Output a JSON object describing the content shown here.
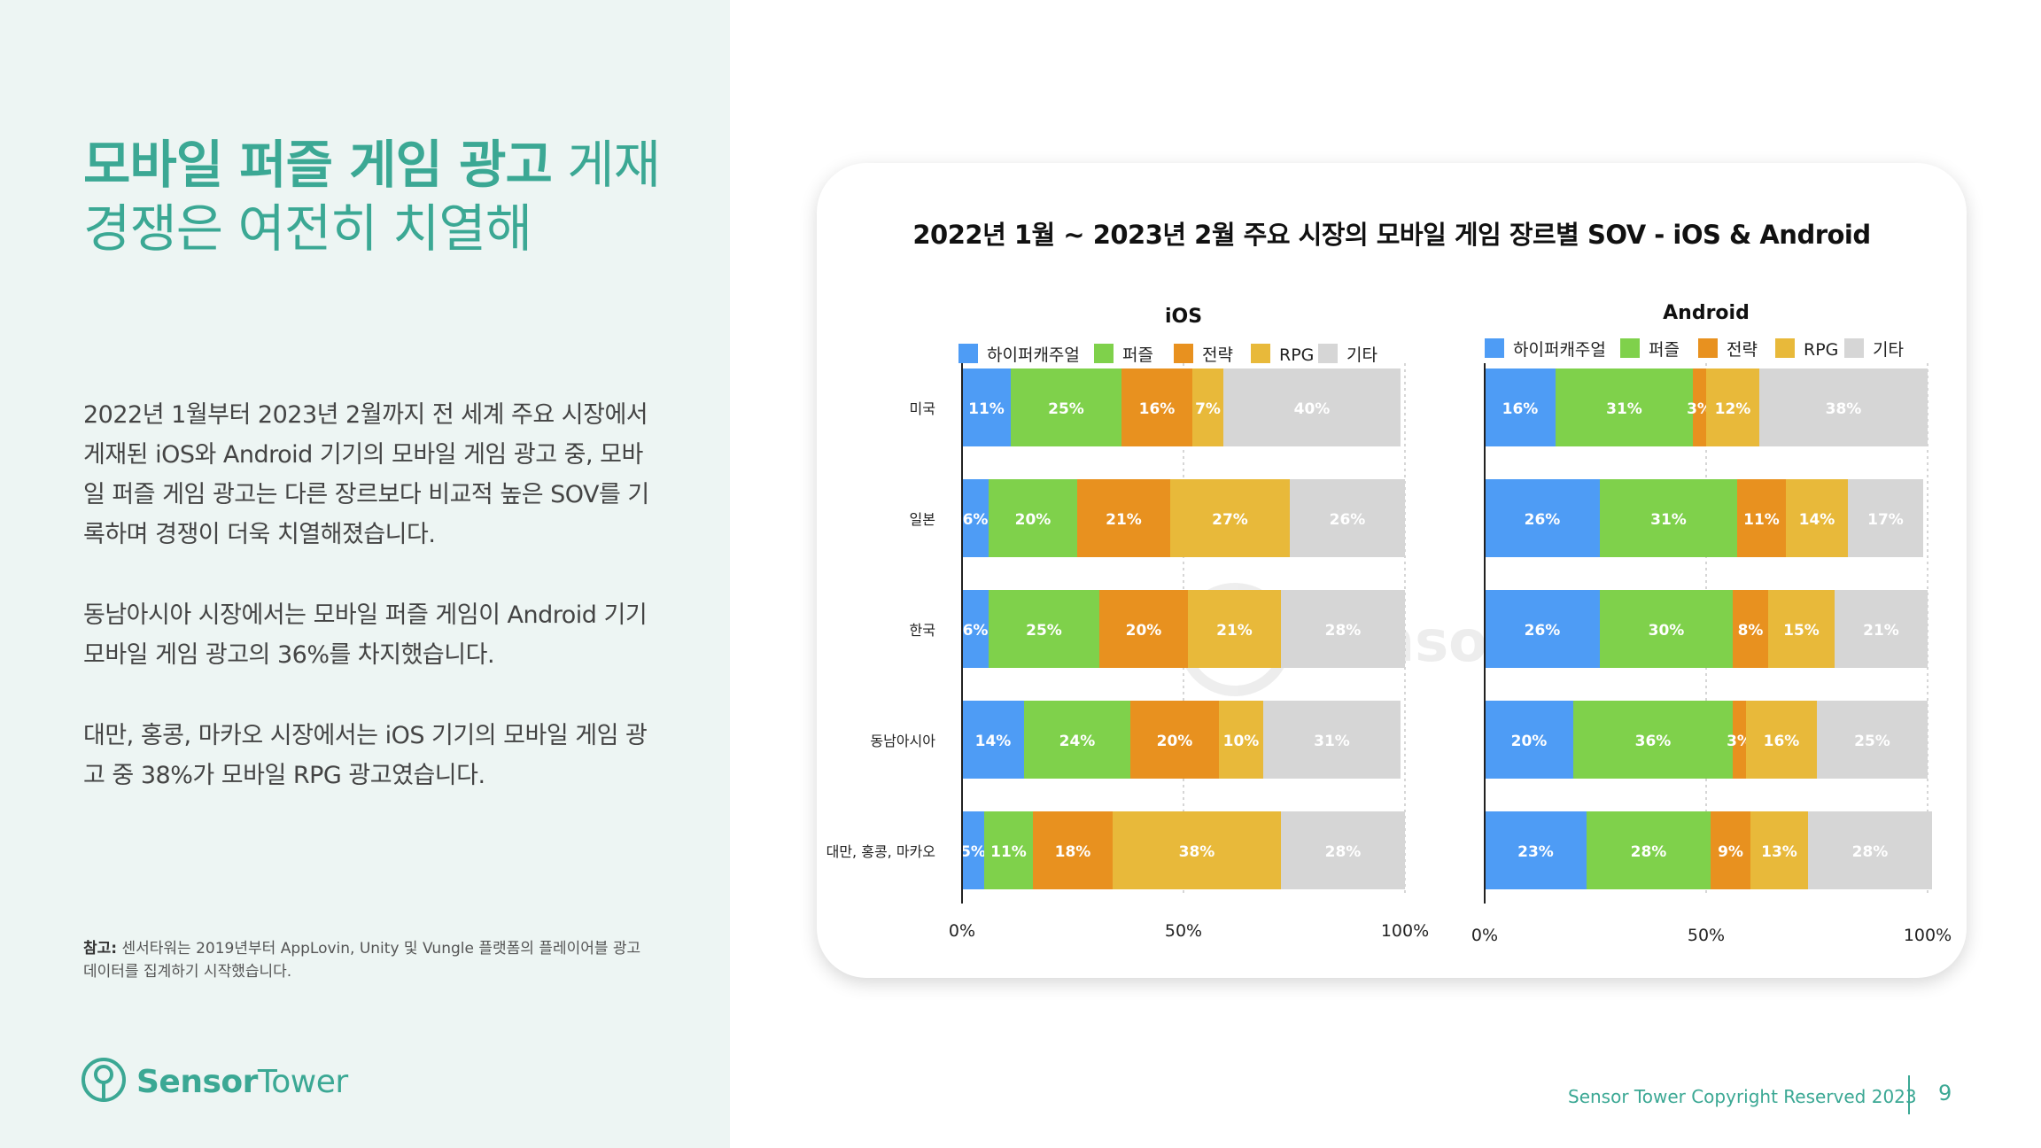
{
  "headline": {
    "bold": "모바일 퍼즐 게임 광고",
    "rest_line1": " 게재",
    "line2": "경쟁은 여전히 치열해"
  },
  "paragraphs": [
    "2022년 1월부터 2023년 2월까지 전 세계 주요 시장에서 게재된 iOS와 Android 기기의 모바일 게임 광고 중, 모바일 퍼즐 게임 광고는 다른 장르보다 비교적 높은 SOV를 기록하며 경쟁이 더욱 치열해졌습니다.",
    "동남아시아 시장에서는 모바일 퍼즐 게임이 Android 기기 모바일 게임 광고의 36%를 차지했습니다.",
    "대만, 홍콩, 마카오 시장에서는 iOS 기기의 모바일 게임 광고 중 38%가 모바일 RPG 광고였습니다."
  ],
  "note": {
    "label": "참고:",
    "text": " 센서타워는 2019년부터 AppLovin, Unity 및 Vungle 플랫폼의 플레이어블 광고 데이터를 집계하기 시작했습니다."
  },
  "logo": {
    "sensor": "Sensor",
    "tower": "Tower",
    "icon": "sensor-tower-pin-icon"
  },
  "footer": {
    "copyright": "Sensor Tower Copyright Reserved 2023",
    "page": "9"
  },
  "chart_data": {
    "title": "2022년 1월 ~ 2023년 2월 주요 시장의 모바일 게임 장르별 SOV - iOS & Android",
    "type": "bar",
    "orientation": "horizontal-stacked-100",
    "watermark": "Sensor Tower",
    "categories": [
      "미국",
      "일본",
      "한국",
      "동남아시아",
      "대만, 홍콩, 마카오"
    ],
    "genres": [
      "하이퍼캐주얼",
      "퍼즐",
      "전략",
      "RPG",
      "기타"
    ],
    "colors": [
      "#4e9cf5",
      "#7fd14b",
      "#e8911f",
      "#e8b93a",
      "#d6d6d6"
    ],
    "label_colors": [
      "#ffffff",
      "#ffffff",
      "#ffffff",
      "#ffffff",
      "#ffffff"
    ],
    "xlim": [
      0,
      100
    ],
    "x_ticks": [
      "0%",
      "50%",
      "100%"
    ],
    "legend_position": "top",
    "grid": "vertical dashed at 50% and 100%",
    "panels": [
      {
        "name": "iOS",
        "values": [
          [
            11,
            25,
            16,
            7,
            40
          ],
          [
            6,
            20,
            21,
            27,
            26
          ],
          [
            6,
            25,
            20,
            21,
            28
          ],
          [
            14,
            24,
            20,
            10,
            31
          ],
          [
            5,
            11,
            18,
            38,
            28
          ]
        ],
        "labels": [
          [
            "11%",
            "25%",
            "16%",
            "7%",
            "40%"
          ],
          [
            "6%",
            "20%",
            "21%",
            "27%",
            "26%"
          ],
          [
            "6%",
            "25%",
            "20%",
            "21%",
            "28%"
          ],
          [
            "14%",
            "24%",
            "20%",
            "10%",
            "31%"
          ],
          [
            "5%",
            "11%",
            "18%",
            "38%",
            "28%"
          ]
        ]
      },
      {
        "name": "Android",
        "values": [
          [
            16,
            31,
            3,
            12,
            38
          ],
          [
            26,
            31,
            11,
            14,
            17
          ],
          [
            26,
            30,
            8,
            15,
            21
          ],
          [
            20,
            36,
            3,
            16,
            25
          ],
          [
            23,
            28,
            9,
            13,
            28
          ]
        ],
        "labels": [
          [
            "16%",
            "31%",
            "3%",
            "12%",
            "38%"
          ],
          [
            "26%",
            "31%",
            "11%",
            "14%",
            "17%"
          ],
          [
            "26%",
            "30%",
            "8%",
            "15%",
            "21%"
          ],
          [
            "20%",
            "36%",
            "3%",
            "16%",
            "25%"
          ],
          [
            "23%",
            "28%",
            "9%",
            "13%",
            "28%"
          ]
        ]
      }
    ]
  }
}
